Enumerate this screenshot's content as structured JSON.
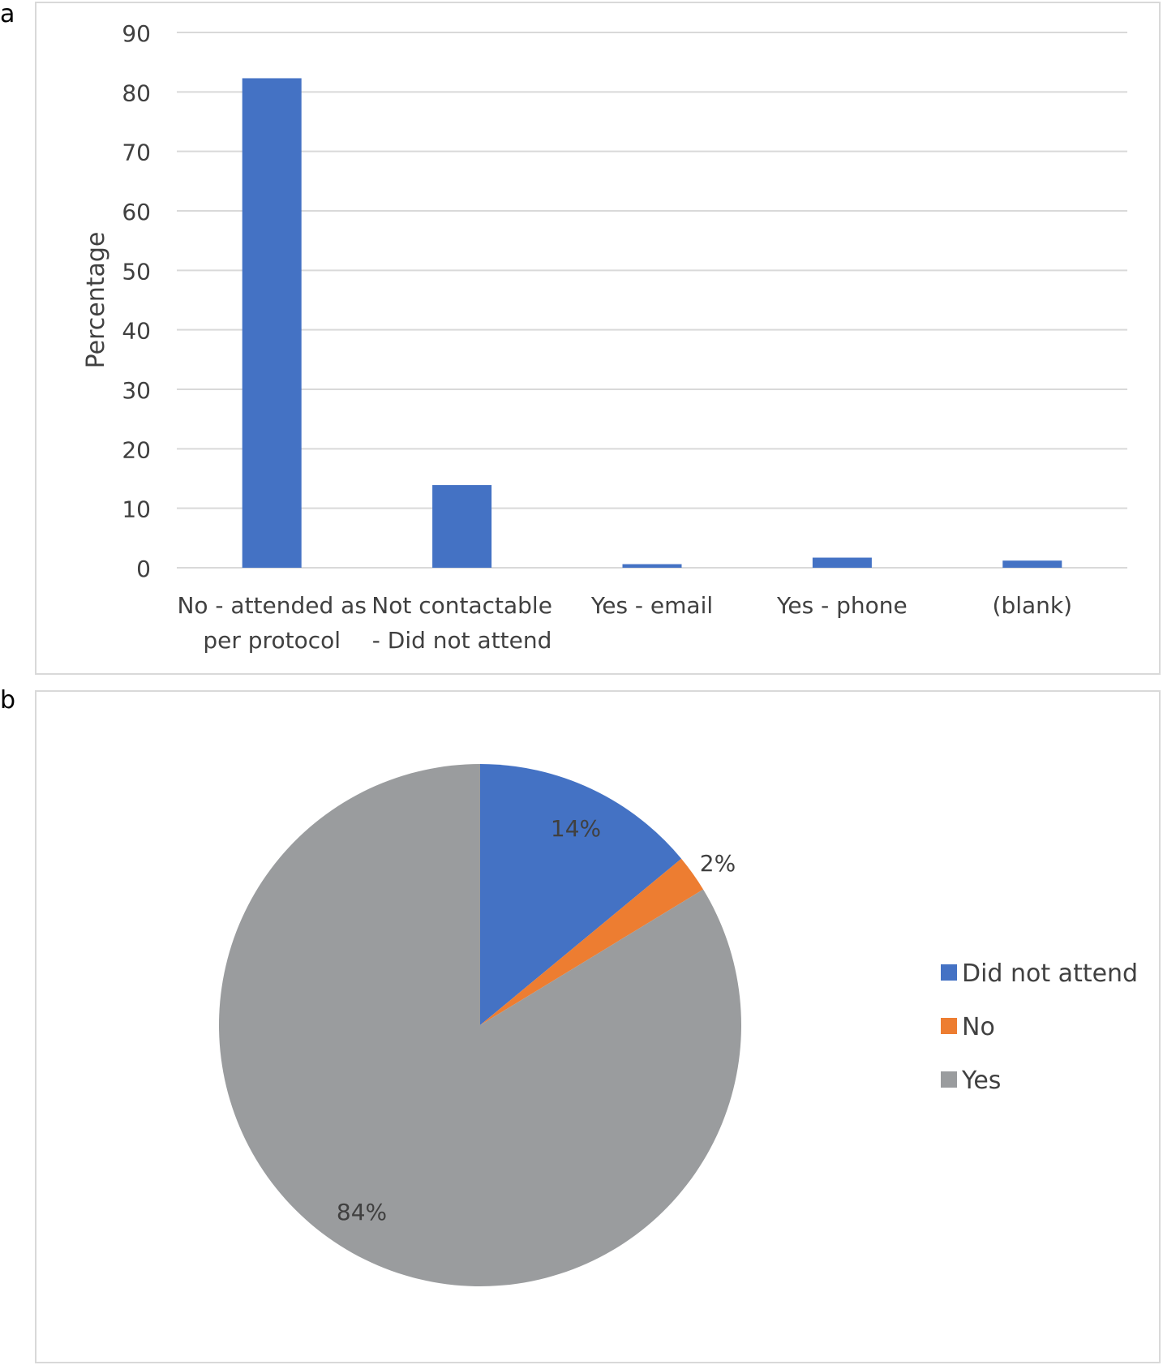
{
  "panels": {
    "a": "a",
    "b": "b"
  },
  "chart_data": [
    {
      "type": "bar",
      "ylabel": "Percentage",
      "ylim": [
        0,
        90
      ],
      "yticks": [
        0,
        10,
        20,
        30,
        40,
        50,
        60,
        70,
        80,
        90
      ],
      "grid": true,
      "categories": [
        [
          "No - attended as",
          "per protocol"
        ],
        [
          "Not contactable",
          "- Did not attend"
        ],
        [
          "Yes - email"
        ],
        [
          "Yes - phone"
        ],
        [
          "(blank)"
        ]
      ],
      "values": [
        82.3,
        13.9,
        0.6,
        1.7,
        1.2
      ],
      "color": "#4472c4"
    },
    {
      "type": "pie",
      "slices": [
        {
          "name": "Did not attend",
          "value": 14,
          "label": "14%",
          "color": "#4472c4"
        },
        {
          "name": "No",
          "value": 2.3,
          "label": "2%",
          "color": "#ed7d31"
        },
        {
          "name": "Yes",
          "value": 83.7,
          "label": "84%",
          "color": "#9a9c9e"
        }
      ],
      "legend_position": "right"
    }
  ]
}
